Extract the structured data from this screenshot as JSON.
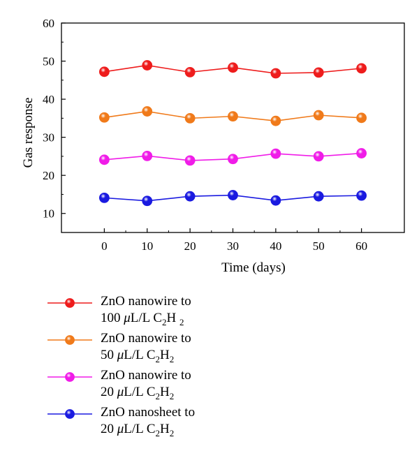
{
  "chart_data": {
    "type": "line",
    "xlabel": "Time (days)",
    "ylabel": "Gas response",
    "xlim": [
      -10,
      70
    ],
    "ylim": [
      5,
      60
    ],
    "x": [
      0,
      10,
      20,
      30,
      40,
      50,
      60
    ],
    "xticks": [
      0,
      10,
      20,
      30,
      40,
      50,
      60
    ],
    "yticks": [
      10,
      20,
      30,
      40,
      50,
      60
    ],
    "grid": false,
    "legend_position": "below",
    "series": [
      {
        "id": "s1",
        "name": "ZnO nanowire to 100 μL/L C2H2",
        "color": "#ee1c1c",
        "values": [
          47.2,
          48.9,
          47.1,
          48.3,
          46.8,
          47.0,
          48.1
        ]
      },
      {
        "id": "s2",
        "name": "ZnO nanowire to 50 μL/L C2H2",
        "color": "#f07a1a",
        "values": [
          35.2,
          36.8,
          35.0,
          35.5,
          34.3,
          35.8,
          35.1
        ]
      },
      {
        "id": "s3",
        "name": "ZnO nanowire to 20 μL/L C2H2",
        "color": "#f01ce8",
        "values": [
          24.1,
          25.1,
          23.9,
          24.3,
          25.7,
          25.0,
          25.8
        ]
      },
      {
        "id": "s4",
        "name": "ZnO nanosheet to 20 μL/L C2H2",
        "color": "#1a1ae0",
        "values": [
          14.1,
          13.3,
          14.5,
          14.8,
          13.4,
          14.5,
          14.7
        ]
      }
    ]
  },
  "legend": [
    {
      "line1": "ZnO nanowire to",
      "qty": "100",
      "unit": "μ",
      "unit2": "L/L C",
      "sub1": "2",
      "h": "H",
      "sub2": "2"
    },
    {
      "line1": "ZnO nanowire to",
      "qty": "50",
      "unit": "μ",
      "unit2": "L/L C",
      "sub1": "2",
      "h": "H",
      "sub2": "2"
    },
    {
      "line1": "ZnO nanowire to",
      "qty": "20",
      "unit": "μ",
      "unit2": "L/L C",
      "sub1": "2",
      "h": "H",
      "sub2": "2"
    },
    {
      "line1": "ZnO nanosheet to",
      "qty": "20",
      "unit": "μ",
      "unit2": "L/L C",
      "sub1": "2",
      "h": "H",
      "sub2": "2"
    }
  ]
}
